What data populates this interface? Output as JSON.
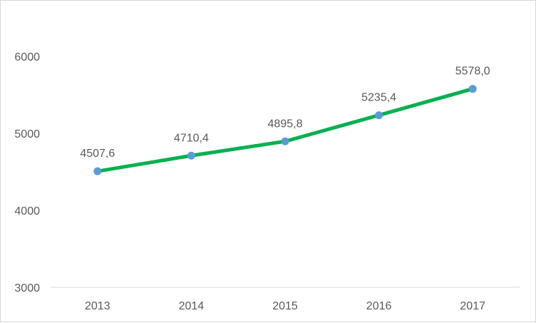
{
  "chart_data": {
    "type": "line",
    "x": [
      "2013",
      "2014",
      "2015",
      "2016",
      "2017"
    ],
    "series": [
      {
        "values": [
          4507.6,
          4710.4,
          4895.8,
          5235.4,
          5578.0
        ],
        "data_labels": [
          "4507,6",
          "4710,4",
          "4895,8",
          "5235,4",
          "5578,0"
        ],
        "line_color": "#00b050",
        "marker_color": "#5b9bd5"
      }
    ],
    "y_ticks": [
      "3000",
      "4000",
      "5000",
      "6000"
    ],
    "ylim": [
      3000,
      6500
    ],
    "grid": false,
    "legend": "none",
    "title": "",
    "xlabel": "",
    "ylabel": ""
  }
}
